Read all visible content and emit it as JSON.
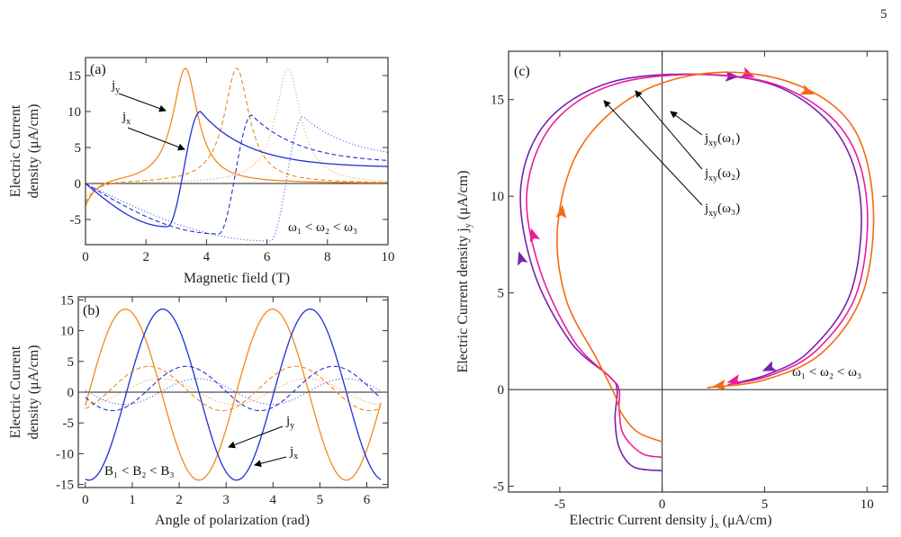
{
  "page_number": "5",
  "chart_data": [
    {
      "type": "line",
      "panel_label": "(a)",
      "xlabel": "Magnetic field (T)",
      "ylabel_line1": "Electric Current",
      "ylabel_line2": "density  (μA/cm)",
      "xlim": [
        0,
        10
      ],
      "ylim": [
        -8.5,
        17.5
      ],
      "xticks": [
        0,
        2,
        4,
        6,
        8,
        10
      ],
      "yticks": [
        -5,
        0,
        5,
        10,
        15
      ],
      "zero_line": true,
      "annotations": [
        {
          "base": "j",
          "sub": "y"
        },
        {
          "base": "j",
          "sub": "x"
        },
        {
          "text": "ω₁ < ω₂ < ω₃"
        }
      ],
      "series_colors": {
        "jy": "#f08a1c",
        "jx": "#1f2fd6"
      },
      "series": [
        {
          "component": "jy",
          "line": "solid",
          "peak_B": 3.3,
          "peak": 16.0,
          "width": 0.5,
          "start": -3.5
        },
        {
          "component": "jy",
          "line": "dashed",
          "peak_B": 5.0,
          "peak": 16.0,
          "width": 0.5,
          "start": -2.8
        },
        {
          "component": "jy",
          "line": "dotted",
          "peak_B": 6.7,
          "peak": 16.0,
          "width": 0.5,
          "start": -2.2
        },
        {
          "component": "jx",
          "line": "solid",
          "res_B": 3.3,
          "max": 10.0,
          "min": -6.0,
          "end": 2.2
        },
        {
          "component": "jx",
          "line": "dashed",
          "res_B": 5.0,
          "max": 9.5,
          "min": -7.0,
          "end": 2.8
        },
        {
          "component": "jx",
          "line": "dotted",
          "res_B": 6.7,
          "max": 9.3,
          "min": -8.0,
          "end": 3.3
        }
      ]
    },
    {
      "type": "line",
      "panel_label": "(b)",
      "xlabel": "Angle of polarization (rad)",
      "ylabel_line1": "Electric Current",
      "ylabel_line2": "density  (μA/cm)",
      "xlim": [
        -0.15,
        6.45
      ],
      "ylim": [
        -15.5,
        15.5
      ],
      "xticks": [
        0,
        1,
        2,
        3,
        4,
        5,
        6
      ],
      "yticks": [
        -15,
        -10,
        -5,
        0,
        5,
        10,
        15
      ],
      "zero_line": true,
      "annotations": [
        {
          "base": "j",
          "sub": "y"
        },
        {
          "base": "j",
          "sub": "x"
        },
        {
          "text": "B₁ < B₂ < B₃"
        }
      ],
      "series_colors": {
        "jy": "#f08a1c",
        "jx": "#1f2fd6"
      },
      "series": [
        {
          "component": "jy",
          "line": "solid",
          "amplitude": 13.9,
          "offset": -0.4,
          "phase": 0.85
        },
        {
          "component": "jx",
          "line": "solid",
          "amplitude": 13.9,
          "offset": -0.4,
          "phase": 1.65
        },
        {
          "component": "jy",
          "line": "dashed",
          "amplitude": 3.6,
          "offset": 0.6,
          "phase": 1.35
        },
        {
          "component": "jx",
          "line": "dashed",
          "amplitude": 3.6,
          "offset": 0.6,
          "phase": 2.15
        },
        {
          "component": "jy",
          "line": "dotted",
          "amplitude": 2.1,
          "offset": 0.1,
          "phase": 1.6
        },
        {
          "component": "jx",
          "line": "dotted",
          "amplitude": 2.1,
          "offset": 0.1,
          "phase": 2.4
        }
      ]
    },
    {
      "type": "parametric",
      "panel_label": "(c)",
      "xlabel_prefix": "Electric Current density j",
      "xlabel_sub": "x",
      "xlabel_suffix": " (μA/cm)",
      "ylabel_prefix": "Electric Current density j",
      "ylabel_sub": "y",
      "ylabel_suffix": " (μA/cm)",
      "xlim": [
        -7.5,
        11
      ],
      "ylim": [
        -5.3,
        17.5
      ],
      "xticks": [
        -5,
        0,
        5,
        10
      ],
      "yticks": [
        -5,
        0,
        5,
        10,
        15
      ],
      "zero_lines": true,
      "annotations": [
        {
          "base": "j",
          "sub": "xy",
          "suffix": "(ω₁)"
        },
        {
          "base": "j",
          "sub": "xy",
          "suffix": "(ω₂)"
        },
        {
          "base": "j",
          "sub": "xy",
          "suffix": "(ω₃)"
        },
        {
          "text": "ω₁ < ω₂ < ω₃"
        }
      ],
      "series": [
        {
          "name_sub": "ω₁",
          "color": "#7a1fb0",
          "points": [
            [
              0,
              -4.2
            ],
            [
              -1.4,
              -4.0
            ],
            [
              -2.1,
              -3.0
            ],
            [
              -2.3,
              -1.5
            ],
            [
              -2.2,
              0.0
            ],
            [
              -2.6,
              0.7
            ],
            [
              -4.5,
              2.5
            ],
            [
              -6.3,
              6.2
            ],
            [
              -6.9,
              10.5
            ],
            [
              -5.6,
              13.9
            ],
            [
              -2.5,
              15.9
            ],
            [
              2.0,
              16.3
            ],
            [
              5.8,
              15.6
            ],
            [
              8.6,
              13.2
            ],
            [
              9.7,
              9.6
            ],
            [
              9.2,
              5.0
            ],
            [
              7.2,
              2.0
            ],
            [
              5.2,
              0.8
            ],
            [
              3.4,
              0.3
            ]
          ],
          "arrows": [
            [
              -6.9,
              6.8
            ],
            [
              3.4,
              16.2
            ],
            [
              5.2,
              1.1
            ]
          ]
        },
        {
          "name_sub": "ω₂",
          "color": "#ec1c9c",
          "points": [
            [
              0,
              -3.5
            ],
            [
              -1.0,
              -3.3
            ],
            [
              -1.9,
              -2.3
            ],
            [
              -2.1,
              -1.0
            ],
            [
              -2.1,
              0.0
            ],
            [
              -2.5,
              0.6
            ],
            [
              -4.3,
              2.5
            ],
            [
              -6.0,
              6.3
            ],
            [
              -6.6,
              10.3
            ],
            [
              -5.3,
              13.8
            ],
            [
              -2.3,
              15.8
            ],
            [
              2.2,
              16.3
            ],
            [
              6.0,
              15.6
            ],
            [
              8.9,
              13.3
            ],
            [
              10.0,
              9.6
            ],
            [
              9.5,
              5.0
            ],
            [
              7.5,
              2.0
            ],
            [
              5.2,
              0.7
            ],
            [
              3.2,
              0.25
            ]
          ],
          "arrows": [
            [
              -6.3,
              8.0
            ],
            [
              4.2,
              16.3
            ],
            [
              3.5,
              0.45
            ]
          ]
        },
        {
          "name_sub": "ω₃",
          "color": "#f46a10",
          "points": [
            [
              0,
              -2.7
            ],
            [
              -1.2,
              -2.2
            ],
            [
              -2.0,
              -1.2
            ],
            [
              -2.3,
              -0.3
            ],
            [
              -3.2,
              1.6
            ],
            [
              -4.7,
              4.7
            ],
            [
              -5.1,
              8.5
            ],
            [
              -4.0,
              12.5
            ],
            [
              -1.2,
              15.3
            ],
            [
              2.6,
              16.4
            ],
            [
              6.5,
              15.8
            ],
            [
              9.3,
              13.6
            ],
            [
              10.3,
              9.6
            ],
            [
              9.8,
              5.0
            ],
            [
              7.8,
              1.9
            ],
            [
              5.0,
              0.5
            ],
            [
              2.2,
              0.1
            ]
          ],
          "arrows": [
            [
              -4.9,
              9.2
            ],
            [
              7.1,
              15.4
            ],
            [
              2.8,
              0.2
            ]
          ]
        }
      ]
    }
  ]
}
